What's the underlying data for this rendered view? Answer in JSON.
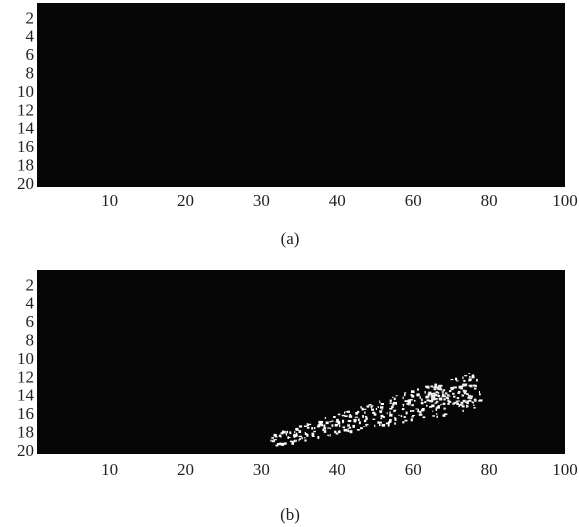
{
  "panels": [
    {
      "caption": "(a)",
      "yticks": [
        2,
        4,
        6,
        8,
        10,
        12,
        14,
        16,
        18,
        20
      ],
      "xticks": [
        10,
        20,
        30,
        40,
        60,
        80,
        100
      ]
    },
    {
      "caption": "(b)",
      "yticks": [
        2,
        4,
        6,
        8,
        10,
        12,
        14,
        16,
        18,
        20
      ],
      "xticks": [
        10,
        20,
        30,
        40,
        60,
        80,
        100
      ]
    }
  ]
}
